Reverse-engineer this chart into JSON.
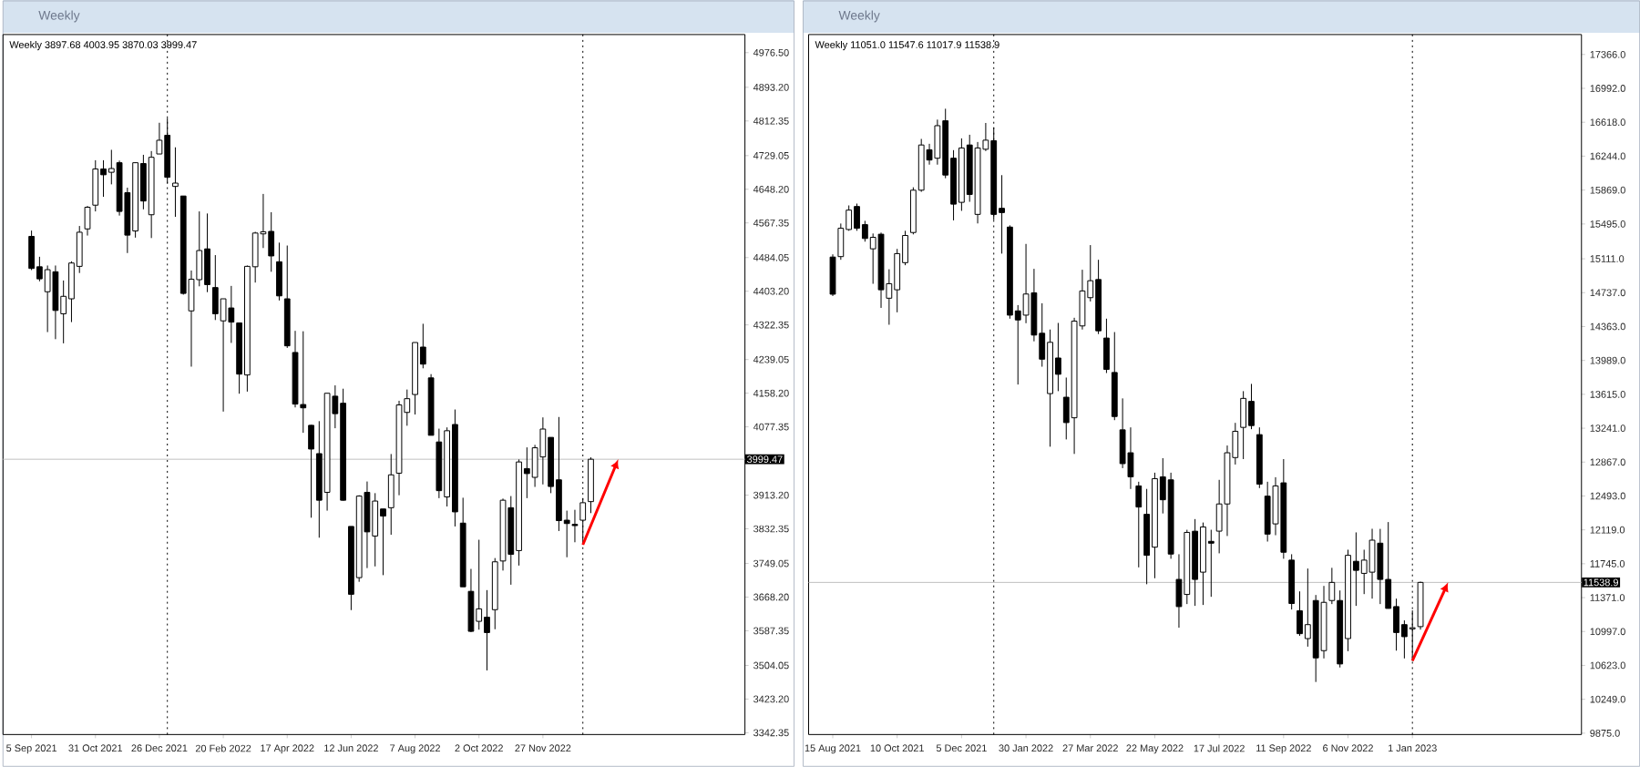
{
  "chart_data": [
    {
      "type": "candlestick",
      "title": "Weekly",
      "subtitle": "Weekly 3897.68 4003.95 3870.03 3999.47",
      "x": [
        "2021-09-05",
        "2021-09-12",
        "2021-09-19",
        "2021-09-26",
        "2021-10-03",
        "2021-10-10",
        "2021-10-17",
        "2021-10-24",
        "2021-10-31",
        "2021-11-07",
        "2021-11-14",
        "2021-11-21",
        "2021-11-28",
        "2021-12-05",
        "2021-12-12",
        "2021-12-19",
        "2021-12-26",
        "2022-01-02",
        "2022-01-09",
        "2022-01-16",
        "2022-01-23",
        "2022-01-30",
        "2022-02-06",
        "2022-02-13",
        "2022-02-20",
        "2022-02-27",
        "2022-03-06",
        "2022-03-13",
        "2022-03-20",
        "2022-03-27",
        "2022-04-03",
        "2022-04-10",
        "2022-04-17",
        "2022-04-24",
        "2022-05-01",
        "2022-05-08",
        "2022-05-15",
        "2022-05-22",
        "2022-05-29",
        "2022-06-05",
        "2022-06-12",
        "2022-06-19",
        "2022-06-26",
        "2022-07-03",
        "2022-07-10",
        "2022-07-17",
        "2022-07-24",
        "2022-07-31",
        "2022-08-07",
        "2022-08-14",
        "2022-08-21",
        "2022-08-28",
        "2022-09-04",
        "2022-09-11",
        "2022-09-18",
        "2022-09-25",
        "2022-10-02",
        "2022-10-09",
        "2022-10-16",
        "2022-10-23",
        "2022-10-30",
        "2022-11-06",
        "2022-11-13",
        "2022-11-20",
        "2022-11-27",
        "2022-12-04",
        "2022-12-11",
        "2022-12-18",
        "2022-12-25",
        "2023-01-01",
        "2023-01-08"
      ],
      "ohlc": [
        [
          4535,
          4549,
          4454,
          4458
        ],
        [
          4462,
          4486,
          4427,
          4433
        ],
        [
          4402,
          4465,
          4305,
          4455
        ],
        [
          4450,
          4465,
          4288,
          4357
        ],
        [
          4349,
          4429,
          4278,
          4391
        ],
        [
          4385,
          4475,
          4329,
          4471
        ],
        [
          4463,
          4560,
          4447,
          4545
        ],
        [
          4553,
          4608,
          4537,
          4605
        ],
        [
          4610,
          4718,
          4595,
          4697
        ],
        [
          4697,
          4718,
          4630,
          4683
        ],
        [
          4689,
          4743,
          4660,
          4698
        ],
        [
          4712,
          4717,
          4585,
          4595
        ],
        [
          4640,
          4652,
          4495,
          4538
        ],
        [
          4548,
          4713,
          4532,
          4712
        ],
        [
          4710,
          4731,
          4600,
          4620
        ],
        [
          4587,
          4740,
          4531,
          4725
        ],
        [
          4733,
          4808,
          4733,
          4766
        ],
        [
          4778,
          4819,
          4662,
          4677
        ],
        [
          4655,
          4749,
          4582,
          4663
        ],
        [
          4632,
          4632,
          4395,
          4398
        ],
        [
          4356,
          4453,
          4222,
          4432
        ],
        [
          4431,
          4595,
          4415,
          4501
        ],
        [
          4505,
          4590,
          4401,
          4419
        ],
        [
          4412,
          4490,
          4334,
          4349
        ],
        [
          4332,
          4385,
          4114,
          4385
        ],
        [
          4363,
          4416,
          4279,
          4329
        ],
        [
          4327,
          4327,
          4157,
          4204
        ],
        [
          4202,
          4465,
          4162,
          4463
        ],
        [
          4462,
          4546,
          4424,
          4543
        ],
        [
          4541,
          4637,
          4507,
          4546
        ],
        [
          4547,
          4593,
          4450,
          4488
        ],
        [
          4474,
          4520,
          4381,
          4392
        ],
        [
          4385,
          4513,
          4267,
          4272
        ],
        [
          4256,
          4308,
          4124,
          4132
        ],
        [
          4131,
          4307,
          4063,
          4123
        ],
        [
          4081,
          4082,
          3859,
          4024
        ],
        [
          4013,
          4091,
          3811,
          3901
        ],
        [
          3920,
          4158,
          3876,
          4158
        ],
        [
          4151,
          4177,
          4074,
          4109
        ],
        [
          4134,
          4169,
          3900,
          3901
        ],
        [
          3838,
          3838,
          3637,
          3675
        ],
        [
          3715,
          3913,
          3705,
          3911
        ],
        [
          3920,
          3946,
          3738,
          3825
        ],
        [
          3815,
          3918,
          3742,
          3899
        ],
        [
          3880,
          3880,
          3721,
          3863
        ],
        [
          3883,
          4012,
          3818,
          3962
        ],
        [
          3966,
          4140,
          3913,
          4130
        ],
        [
          4112,
          4167,
          4080,
          4145
        ],
        [
          4155,
          4280,
          4107,
          4280
        ],
        [
          4269,
          4325,
          4218,
          4228
        ],
        [
          4195,
          4204,
          4057,
          4057
        ],
        [
          4041,
          4073,
          3906,
          3924
        ],
        [
          3909,
          4076,
          3886,
          4068
        ],
        [
          4083,
          4119,
          3838,
          3873
        ],
        [
          3846,
          3907,
          3693,
          3693
        ],
        [
          3682,
          3736,
          3584,
          3586
        ],
        [
          3610,
          3806,
          3590,
          3640
        ],
        [
          3620,
          3685,
          3492,
          3583
        ],
        [
          3638,
          3762,
          3591,
          3753
        ],
        [
          3755,
          3905,
          3732,
          3901
        ],
        [
          3883,
          3911,
          3698,
          3771
        ],
        [
          3780,
          3999,
          3744,
          3993
        ],
        [
          3977,
          4028,
          3906,
          3965
        ],
        [
          3956,
          4034,
          3933,
          4027
        ],
        [
          4005,
          4100,
          3939,
          4072
        ],
        [
          4052,
          4052,
          3918,
          3934
        ],
        [
          3950,
          4101,
          3827,
          3852
        ],
        [
          3853,
          3876,
          3764,
          3845
        ],
        [
          3843,
          3878,
          3800,
          3840
        ],
        [
          3853,
          3906,
          3794,
          3895
        ],
        [
          3897.68,
          4003.95,
          3870.03,
          3999.47
        ]
      ],
      "xlim": [
        "2021-08-11",
        "2023-05-23"
      ],
      "xticks": [
        {
          "value": "2021-09-05",
          "label": "5 Sep 2021"
        },
        {
          "value": "2021-10-31",
          "label": "31 Oct 2021"
        },
        {
          "value": "2021-12-26",
          "label": "26 Dec 2021"
        },
        {
          "value": "2022-02-20",
          "label": "20 Feb 2022"
        },
        {
          "value": "2022-04-17",
          "label": "17 Apr 2022"
        },
        {
          "value": "2022-06-12",
          "label": "12 Jun 2022"
        },
        {
          "value": "2022-08-07",
          "label": "7 Aug 2022"
        },
        {
          "value": "2022-10-02",
          "label": "2 Oct 2022"
        },
        {
          "value": "2022-11-27",
          "label": "27 Nov 2022"
        }
      ],
      "ylim": [
        3338,
        5020
      ],
      "yticks": [
        {
          "value": 4976.5,
          "label": "4976.50"
        },
        {
          "value": 4893.2,
          "label": "4893.20"
        },
        {
          "value": 4812.35,
          "label": "4812.35"
        },
        {
          "value": 4729.05,
          "label": "4729.05"
        },
        {
          "value": 4648.2,
          "label": "4648.20"
        },
        {
          "value": 4567.35,
          "label": "4567.35"
        },
        {
          "value": 4484.05,
          "label": "4484.05"
        },
        {
          "value": 4403.2,
          "label": "4403.20"
        },
        {
          "value": 4322.35,
          "label": "4322.35"
        },
        {
          "value": 4239.05,
          "label": "4239.05"
        },
        {
          "value": 4158.2,
          "label": "4158.20"
        },
        {
          "value": 4077.35,
          "label": "4077.35"
        },
        {
          "value": 3913.2,
          "label": "3913.20"
        },
        {
          "value": 3832.35,
          "label": "3832.35"
        },
        {
          "value": 3749.05,
          "label": "3749.05"
        },
        {
          "value": 3668.2,
          "label": "3668.20"
        },
        {
          "value": 3587.35,
          "label": "3587.35"
        },
        {
          "value": 3504.05,
          "label": "3504.05"
        },
        {
          "value": 3423.2,
          "label": "3423.20"
        },
        {
          "value": 3342.35,
          "label": "3342.35"
        }
      ],
      "ref_lines": [
        {
          "axis": "x",
          "value": "2022-01-02",
          "color": "#000000",
          "line_style": "dotted"
        },
        {
          "axis": "x",
          "value": "2023-01-01",
          "color": "#000000",
          "line_style": "dotted"
        },
        {
          "axis": "y",
          "value": 3999.47,
          "label": "3999.47",
          "color": "#c0c0c0",
          "line_style": "solid"
        }
      ]
    },
    {
      "type": "candlestick",
      "title": "Weekly",
      "subtitle": "Weekly 11051.0 11547.6 11017.9 11538.9",
      "x": [
        "2021-08-15",
        "2021-08-22",
        "2021-08-29",
        "2021-09-05",
        "2021-09-12",
        "2021-09-19",
        "2021-09-26",
        "2021-10-03",
        "2021-10-10",
        "2021-10-17",
        "2021-10-24",
        "2021-10-31",
        "2021-11-07",
        "2021-11-14",
        "2021-11-21",
        "2021-11-28",
        "2021-12-05",
        "2021-12-12",
        "2021-12-19",
        "2021-12-26",
        "2022-01-02",
        "2022-01-09",
        "2022-01-16",
        "2022-01-23",
        "2022-01-30",
        "2022-02-06",
        "2022-02-13",
        "2022-02-20",
        "2022-02-27",
        "2022-03-06",
        "2022-03-13",
        "2022-03-20",
        "2022-03-27",
        "2022-04-03",
        "2022-04-10",
        "2022-04-17",
        "2022-04-24",
        "2022-05-01",
        "2022-05-08",
        "2022-05-15",
        "2022-05-22",
        "2022-05-29",
        "2022-06-05",
        "2022-06-12",
        "2022-06-19",
        "2022-06-26",
        "2022-07-03",
        "2022-07-10",
        "2022-07-17",
        "2022-07-24",
        "2022-07-31",
        "2022-08-07",
        "2022-08-14",
        "2022-08-21",
        "2022-08-28",
        "2022-09-04",
        "2022-09-11",
        "2022-09-18",
        "2022-09-25",
        "2022-10-02",
        "2022-10-09",
        "2022-10-16",
        "2022-10-23",
        "2022-10-30",
        "2022-11-06",
        "2022-11-13",
        "2022-11-20",
        "2022-11-27",
        "2022-12-04",
        "2022-12-11",
        "2022-12-18",
        "2022-12-25",
        "2023-01-01",
        "2023-01-08"
      ],
      "ohlc": [
        [
          15130,
          15160,
          14700,
          14720
        ],
        [
          15135,
          15500,
          15100,
          15448
        ],
        [
          15434,
          15700,
          15420,
          15648
        ],
        [
          15688,
          15720,
          15420,
          15448
        ],
        [
          15488,
          15530,
          15300,
          15335
        ],
        [
          15221,
          15390,
          14835,
          15348
        ],
        [
          15382,
          15400,
          14569,
          14769
        ],
        [
          14676,
          14995,
          14383,
          14836
        ],
        [
          14769,
          15220,
          14520,
          15168
        ],
        [
          15068,
          15420,
          15040,
          15368
        ],
        [
          15401,
          15900,
          15380,
          15868
        ],
        [
          15868,
          16434,
          15850,
          16367
        ],
        [
          16314,
          16380,
          16150,
          16201
        ],
        [
          16221,
          16647,
          16150,
          16580
        ],
        [
          16634,
          16767,
          16000,
          16035
        ],
        [
          16221,
          16310,
          15535,
          15714
        ],
        [
          15734,
          16440,
          15640,
          16334
        ],
        [
          16367,
          16480,
          15740,
          15821
        ],
        [
          15601,
          16400,
          15501,
          16334
        ],
        [
          16320,
          16610,
          16300,
          16420
        ],
        [
          16414,
          16560,
          15540,
          15601
        ],
        [
          15668,
          16034,
          15168,
          15621
        ],
        [
          15461,
          15480,
          14450,
          14489
        ],
        [
          14536,
          14600,
          13723,
          14436
        ],
        [
          14489,
          15275,
          14400,
          14722
        ],
        [
          14735,
          15000,
          14200,
          14269
        ],
        [
          14289,
          14620,
          13920,
          14003
        ],
        [
          13623,
          14330,
          13037,
          14189
        ],
        [
          14016,
          14403,
          13650,
          13836
        ],
        [
          13583,
          13800,
          13117,
          13303
        ],
        [
          13356,
          14460,
          12957,
          14423
        ],
        [
          14370,
          14990,
          14330,
          14756
        ],
        [
          14682,
          15262,
          14640,
          14869
        ],
        [
          14882,
          15100,
          14280,
          14316
        ],
        [
          14236,
          14450,
          13850,
          13890
        ],
        [
          13856,
          14302,
          13330,
          13370
        ],
        [
          13223,
          13570,
          12800,
          12850
        ],
        [
          12970,
          13250,
          12570,
          12704
        ],
        [
          12604,
          12650,
          11705,
          12371
        ],
        [
          12291,
          12571,
          11519,
          11838
        ],
        [
          11928,
          12750,
          11585,
          12684
        ],
        [
          12704,
          12910,
          12300,
          12451
        ],
        [
          12671,
          12750,
          11800,
          11852
        ],
        [
          11572,
          11850,
          11039,
          11272
        ],
        [
          11406,
          12120,
          11300,
          12091
        ],
        [
          12104,
          12238,
          11280,
          11572
        ],
        [
          11652,
          12200,
          11290,
          12151
        ],
        [
          11992,
          12120,
          11380,
          11972
        ],
        [
          12105,
          12671,
          11860,
          12405
        ],
        [
          12405,
          13050,
          12051,
          12970
        ],
        [
          12917,
          13300,
          12840,
          13207
        ],
        [
          13250,
          13650,
          12900,
          13570
        ],
        [
          13537,
          13730,
          13230,
          13270
        ],
        [
          13170,
          13250,
          12580,
          12624
        ],
        [
          12491,
          12650,
          11990,
          12072
        ],
        [
          12185,
          12700,
          12060,
          12604
        ],
        [
          12638,
          12900,
          11800,
          11872
        ],
        [
          11785,
          11850,
          11240,
          11306
        ],
        [
          11226,
          11440,
          10950,
          10973
        ],
        [
          10919,
          11692,
          10830,
          11073
        ],
        [
          11339,
          11400,
          10440,
          10706
        ],
        [
          10786,
          11500,
          10700,
          11319
        ],
        [
          11339,
          11700,
          11300,
          11539
        ],
        [
          11339,
          11450,
          10600,
          10639
        ],
        [
          10919,
          11900,
          10780,
          11838
        ],
        [
          11772,
          12091,
          11280,
          11672
        ],
        [
          11639,
          11900,
          11410,
          11785
        ],
        [
          11652,
          12131,
          11360,
          12005
        ],
        [
          11972,
          12130,
          11300,
          11572
        ],
        [
          11572,
          12205,
          11250,
          11252
        ],
        [
          11272,
          11360,
          10786,
          10986
        ],
        [
          11073,
          11120,
          10700,
          10940
        ],
        [
          11026,
          11230,
          10673,
          11039
        ],
        [
          11051.0,
          11547.6,
          11017.9,
          11538.9
        ]
      ],
      "xlim": [
        "2021-07-25",
        "2023-05-28"
      ],
      "xticks": [
        {
          "value": "2021-08-15",
          "label": "15 Aug 2021"
        },
        {
          "value": "2021-10-10",
          "label": "10 Oct 2021"
        },
        {
          "value": "2021-12-05",
          "label": "5 Dec 2021"
        },
        {
          "value": "2022-01-30",
          "label": "30 Jan 2022"
        },
        {
          "value": "2022-03-27",
          "label": "27 Mar 2022"
        },
        {
          "value": "2022-05-22",
          "label": "22 May 2022"
        },
        {
          "value": "2022-07-17",
          "label": "17 Jul 2022"
        },
        {
          "value": "2022-09-11",
          "label": "11 Sep 2022"
        },
        {
          "value": "2022-11-06",
          "label": "6 Nov 2022"
        },
        {
          "value": "2023-01-01",
          "label": "1 Jan 2023"
        }
      ],
      "ylim": [
        9860,
        17586
      ],
      "yticks": [
        {
          "value": 17366,
          "label": "17366.0"
        },
        {
          "value": 16992,
          "label": "16992.0"
        },
        {
          "value": 16618,
          "label": "16618.0"
        },
        {
          "value": 16244,
          "label": "16244.0"
        },
        {
          "value": 15869,
          "label": "15869.0"
        },
        {
          "value": 15495,
          "label": "15495.0"
        },
        {
          "value": 15111,
          "label": "15111.0"
        },
        {
          "value": 14737,
          "label": "14737.0"
        },
        {
          "value": 14363,
          "label": "14363.0"
        },
        {
          "value": 13989,
          "label": "13989.0"
        },
        {
          "value": 13615,
          "label": "13615.0"
        },
        {
          "value": 13241,
          "label": "13241.0"
        },
        {
          "value": 12867,
          "label": "12867.0"
        },
        {
          "value": 12493,
          "label": "12493.0"
        },
        {
          "value": 12119,
          "label": "12119.0"
        },
        {
          "value": 11745,
          "label": "11745.0"
        },
        {
          "value": 11371,
          "label": "11371.0"
        },
        {
          "value": 10997,
          "label": "10997.0"
        },
        {
          "value": 10623,
          "label": "10623.0"
        },
        {
          "value": 10249,
          "label": "10249.0"
        },
        {
          "value": 9875,
          "label": "9875.0"
        }
      ],
      "ref_lines": [
        {
          "axis": "x",
          "value": "2022-01-02",
          "color": "#000000",
          "line_style": "dotted"
        },
        {
          "axis": "x",
          "value": "2023-01-01",
          "color": "#000000",
          "line_style": "dotted"
        },
        {
          "axis": "y",
          "value": 11538.9,
          "label": "11538.9",
          "color": "#c0c0c0",
          "line_style": "solid"
        }
      ]
    }
  ]
}
